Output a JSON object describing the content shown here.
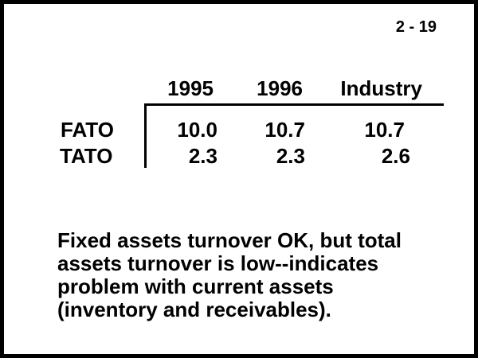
{
  "slide": {
    "slide_number": "2 - 19",
    "note": "Fixed assets turnover OK, but total\nassets turnover is low--indicates\nproblem with current assets\n(inventory and receivables)."
  },
  "table": {
    "columns": [
      "1995",
      "1996",
      "Industry"
    ],
    "rows": [
      {
        "label": "FATO",
        "values": [
          "10.0",
          "10.7",
          "10.7"
        ]
      },
      {
        "label": "TATO",
        "values": [
          "2.3",
          "2.3",
          "2.6"
        ]
      }
    ]
  },
  "colors": {
    "text": "#000000",
    "background": "#ffffff",
    "border": "#000000"
  }
}
